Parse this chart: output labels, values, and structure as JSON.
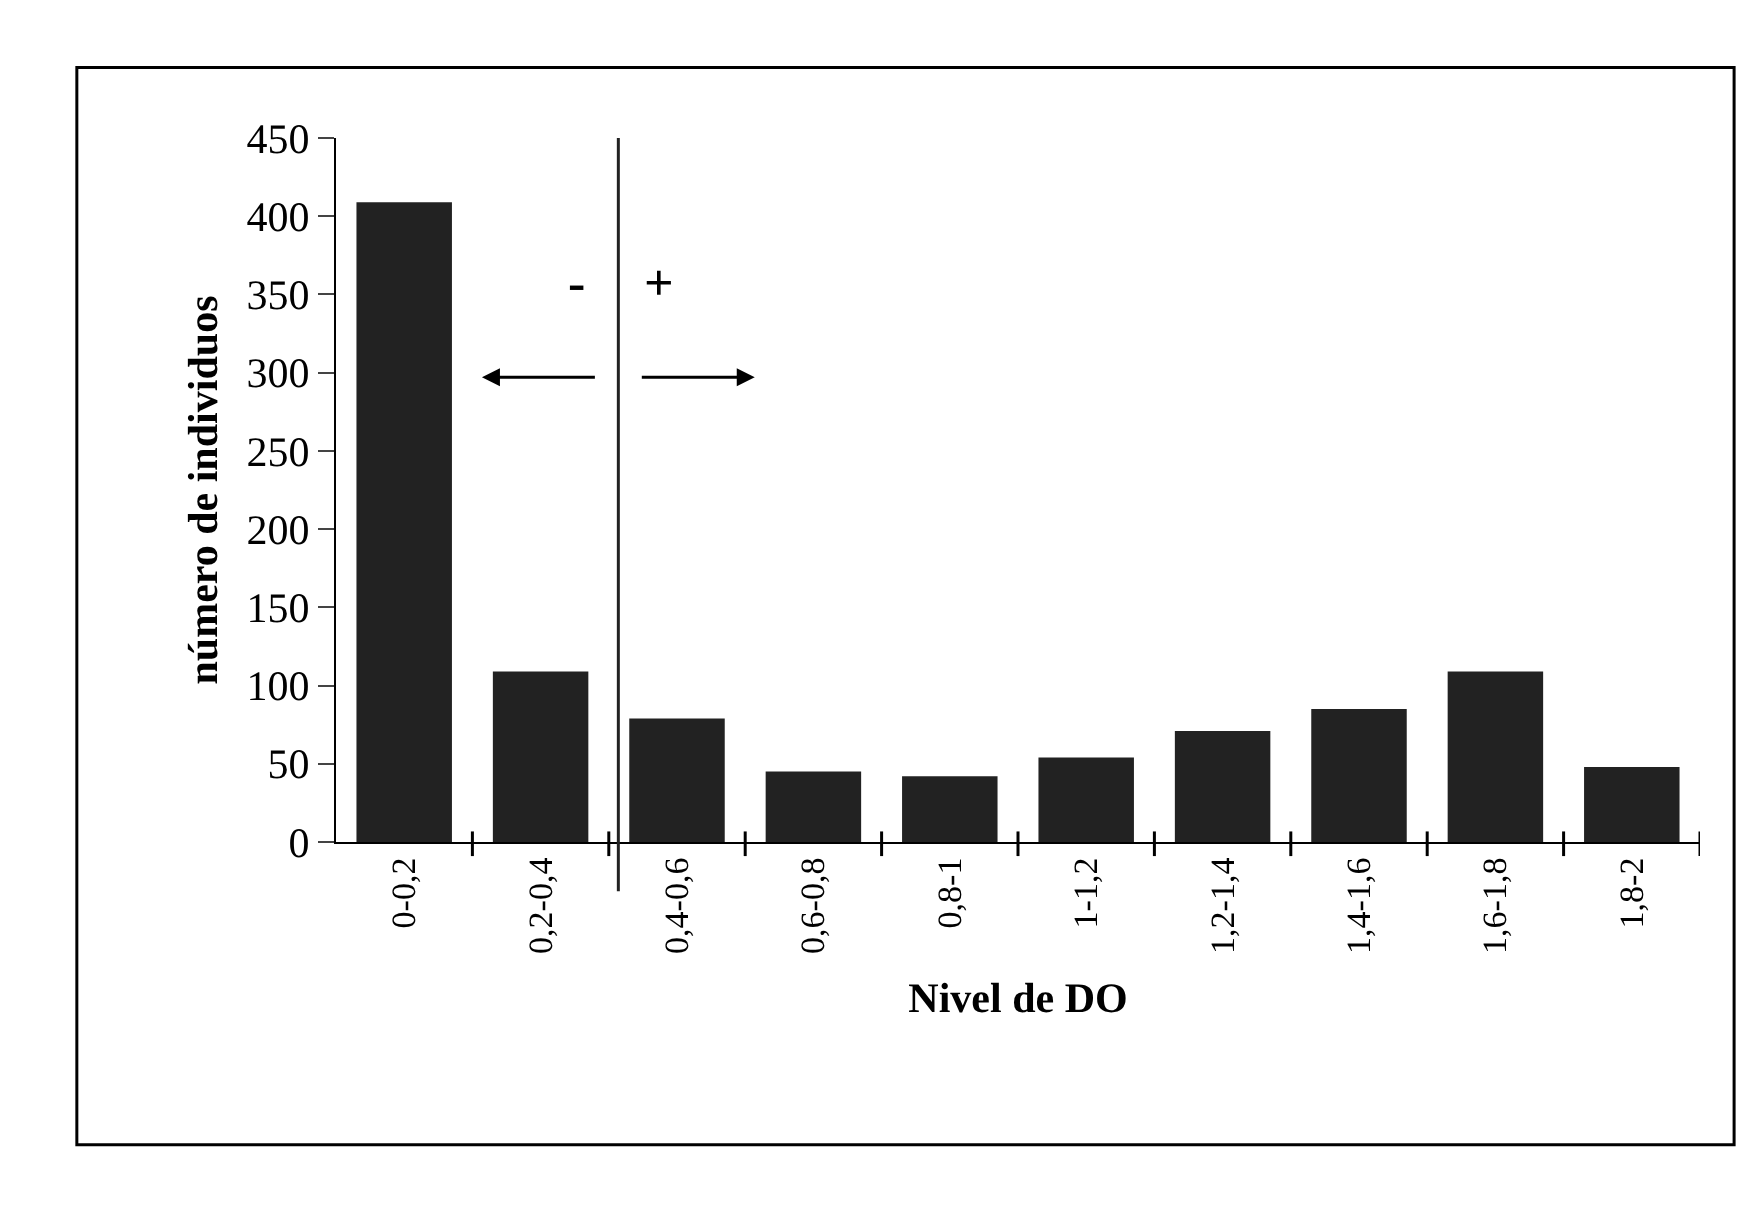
{
  "chart_data": {
    "type": "bar",
    "xlabel": "Nivel de DO",
    "ylabel": "número de individuos",
    "categories": [
      "0-0,2",
      "0,2-0,4",
      "0,4-0,6",
      "0,6-0,8",
      "0,8-1",
      "1-1,2",
      "1,2-1,4",
      "1,4-1,6",
      "1,6-1,8",
      "1,8-2"
    ],
    "values": [
      409,
      109,
      79,
      45,
      42,
      54,
      71,
      85,
      109,
      48
    ],
    "color": "#222222",
    "ylim": [
      0,
      450
    ],
    "yticks": [
      0,
      50,
      100,
      150,
      200,
      250,
      300,
      350,
      400,
      450
    ],
    "annotations": [
      "-",
      "+"
    ]
  }
}
